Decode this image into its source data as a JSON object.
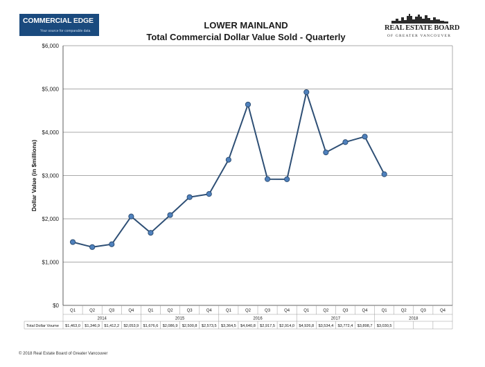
{
  "header": {
    "logo_left": {
      "brand_a": "COMMERCIAL ",
      "brand_b": "EDGE",
      "tagline": "Your source for comparable data"
    },
    "title_line1": "LOWER MAINLAND",
    "title_line2": "Total Commercial Dollar Value Sold - Quarterly",
    "logo_right": {
      "name": "REAL ESTATE BOARD",
      "sub": "OF GREATER VANCOUVER"
    }
  },
  "chart_data": {
    "type": "line",
    "ylabel": "Dollar Value (in $millions)",
    "ylim": [
      0,
      6000
    ],
    "yticks": [
      "$0",
      "$1,000",
      "$2,000",
      "$3,000",
      "$4,000",
      "$5,000",
      "$6,000"
    ],
    "grid": true,
    "categories": [
      "Q1",
      "Q2",
      "Q3",
      "Q4",
      "Q1",
      "Q2",
      "Q3",
      "Q4",
      "Q1",
      "Q2",
      "Q3",
      "Q4",
      "Q1",
      "Q2",
      "Q3",
      "Q4",
      "Q1",
      "Q2",
      "Q3",
      "Q4"
    ],
    "years": [
      "2014",
      "2015",
      "2016",
      "2017",
      "2018"
    ],
    "series": [
      {
        "values": [
          1463.0,
          1346.9,
          1412.2,
          2053.9,
          1676.6,
          2086.9,
          2500.8,
          2573.5,
          3364.5,
          4640.8,
          2917.5,
          2914.0,
          4926.8,
          3534.4,
          3772.4,
          3898.7,
          3030.5,
          null,
          null,
          null
        ],
        "color": "#2e4f75"
      }
    ],
    "table": {
      "row_label": "Total Dollar Voume",
      "cells": [
        "$1,463,0",
        "$1,346,9",
        "$1,412,2",
        "$2,053,9",
        "$1,676,6",
        "$2,086,9",
        "$2,500,8",
        "$2,573,5",
        "$3,364,5",
        "$4,640,8",
        "$2,917,5",
        "$2,914,0",
        "$4,926,8",
        "$3,534,4",
        "$3,772,4",
        "$3,898,7",
        "$3,030,5",
        "",
        "",
        ""
      ]
    },
    "colors": {
      "line": "#2e4f75",
      "marker": "#4f81bd",
      "marker_edge": "#2e4f75",
      "grid": "#8c8c8c"
    }
  },
  "footer": "© 2018 Real Estate Board of Greater Vancouver"
}
